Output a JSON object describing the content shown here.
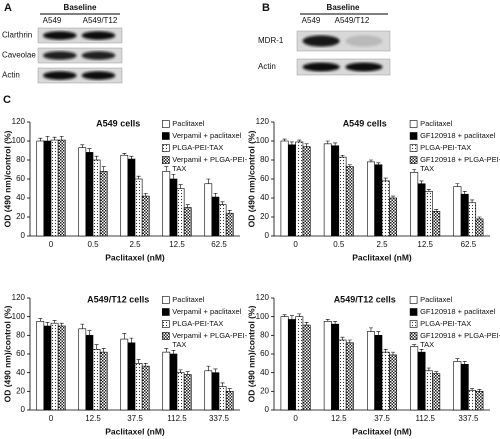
{
  "panels": [
    {
      "label": "A",
      "header": "Baseline",
      "columns": [
        "A549",
        "A549/T12"
      ],
      "rows": [
        "Clarthrin",
        "Caveolae",
        "Actin"
      ]
    },
    {
      "label": "B",
      "header": "Baseline",
      "columns": [
        "A549",
        "A549/T12"
      ],
      "rows": [
        "MDR-1",
        "Actin"
      ]
    }
  ],
  "section_label": "C",
  "chart_data": [
    {
      "type": "bar",
      "title": "A549 cells",
      "xlabel": "Paclitaxel (nM)",
      "ylabel": "OD (490 nm)/control (%)",
      "categories": [
        "0",
        "0.5",
        "2.5",
        "12.5",
        "62.5"
      ],
      "ylim": [
        0,
        120
      ],
      "yticks": [
        0,
        20,
        40,
        60,
        80,
        100,
        120
      ],
      "series": [
        {
          "name": "Paclitaxel",
          "color": "#ffffff",
          "pattern": "solid",
          "values": [
            100,
            93,
            85,
            68,
            55
          ],
          "errors": [
            3,
            3,
            2,
            5,
            5
          ]
        },
        {
          "name": "Verpamil + paclitaxel",
          "color": "#000000",
          "pattern": "solid",
          "values": [
            100,
            88,
            81,
            60,
            41
          ],
          "errors": [
            5,
            4,
            3,
            5,
            4
          ]
        },
        {
          "name": "PLGA-PEI-TAX",
          "color": "#ffffff",
          "pattern": "dots",
          "values": [
            101,
            80,
            60,
            50,
            33
          ],
          "errors": [
            3,
            4,
            3,
            4,
            3
          ]
        },
        {
          "name": "Verpamil + PLGA-PEI-TAX",
          "color": "#888888",
          "pattern": "checker",
          "values": [
            101,
            68,
            42,
            30,
            24
          ],
          "errors": [
            4,
            5,
            3,
            3,
            3
          ]
        }
      ]
    },
    {
      "type": "bar",
      "title": "A549 cells",
      "xlabel": "Paclitaxel (nM)",
      "ylabel": "OD (490 nm)/control (%)",
      "categories": [
        "0",
        "0.5",
        "2.5",
        "12.5",
        "62.5"
      ],
      "ylim": [
        0,
        120
      ],
      "yticks": [
        0,
        20,
        40,
        60,
        80,
        100,
        120
      ],
      "series": [
        {
          "name": "Paclitaxel",
          "color": "#ffffff",
          "pattern": "solid",
          "values": [
            100,
            97,
            78,
            67,
            52
          ],
          "errors": [
            2,
            3,
            2,
            3,
            3
          ]
        },
        {
          "name": "GF120918 + paclitaxel",
          "color": "#000000",
          "pattern": "solid",
          "values": [
            96,
            95,
            75,
            55,
            44
          ],
          "errors": [
            3,
            3,
            2,
            3,
            3
          ]
        },
        {
          "name": "PLGA-PEI-TAX",
          "color": "#ffffff",
          "pattern": "dots",
          "values": [
            99,
            83,
            58,
            47,
            35
          ],
          "errors": [
            2,
            2,
            3,
            2,
            3
          ]
        },
        {
          "name": "GF120918 + PLGA-PEI-TAX",
          "color": "#888888",
          "pattern": "checker",
          "values": [
            94,
            73,
            40,
            26,
            18
          ],
          "errors": [
            3,
            2,
            2,
            2,
            2
          ]
        }
      ]
    },
    {
      "type": "bar",
      "title": "A549/T12 cells",
      "xlabel": "Paclitaxel (nM)",
      "ylabel": "OD (490 nm)/control (%)",
      "categories": [
        "0",
        "12.5",
        "37.5",
        "112.5",
        "337.5"
      ],
      "ylim": [
        0,
        120
      ],
      "yticks": [
        0,
        20,
        40,
        60,
        80,
        100,
        120
      ],
      "series": [
        {
          "name": "Paclitaxel",
          "color": "#ffffff",
          "pattern": "solid",
          "values": [
            95,
            87,
            76,
            62,
            42
          ],
          "errors": [
            3,
            5,
            6,
            4,
            5
          ]
        },
        {
          "name": "Verpamil + paclitaxel",
          "color": "#000000",
          "pattern": "solid",
          "values": [
            90,
            80,
            72,
            60,
            40
          ],
          "errors": [
            4,
            5,
            5,
            4,
            4
          ]
        },
        {
          "name": "PLGA-PEI-TAX",
          "color": "#ffffff",
          "pattern": "dots",
          "values": [
            93,
            65,
            50,
            40,
            25
          ],
          "errors": [
            3,
            5,
            4,
            3,
            4
          ]
        },
        {
          "name": "Verpamil + PLGA-PEI-TAX",
          "color": "#888888",
          "pattern": "checker",
          "values": [
            90,
            62,
            47,
            38,
            20
          ],
          "errors": [
            3,
            4,
            3,
            3,
            3
          ]
        }
      ]
    },
    {
      "type": "bar",
      "title": "A549/T12 cells",
      "xlabel": "Paclitaxel (nM)",
      "ylabel": "OD (490 nm)/control (%)",
      "categories": [
        "0",
        "12.5",
        "37.5",
        "112.5",
        "337.5"
      ],
      "ylim": [
        0,
        120
      ],
      "yticks": [
        0,
        20,
        40,
        60,
        80,
        100,
        120
      ],
      "series": [
        {
          "name": "Paclitaxel",
          "color": "#ffffff",
          "pattern": "solid",
          "values": [
            100,
            95,
            84,
            68,
            52
          ],
          "errors": [
            2,
            2,
            4,
            2,
            3
          ]
        },
        {
          "name": "GF120918 + paclitaxel",
          "color": "#000000",
          "pattern": "solid",
          "values": [
            97,
            92,
            80,
            62,
            49
          ],
          "errors": [
            4,
            3,
            4,
            3,
            3
          ]
        },
        {
          "name": "PLGA-PEI-TAX",
          "color": "#ffffff",
          "pattern": "dots",
          "values": [
            100,
            75,
            62,
            42,
            21
          ],
          "errors": [
            3,
            3,
            3,
            3,
            2
          ]
        },
        {
          "name": "GF120918 + PLGA-PEI-TAX",
          "color": "#888888",
          "pattern": "checker",
          "values": [
            91,
            72,
            59,
            39,
            20
          ],
          "errors": [
            3,
            3,
            3,
            2,
            2
          ]
        }
      ]
    }
  ]
}
